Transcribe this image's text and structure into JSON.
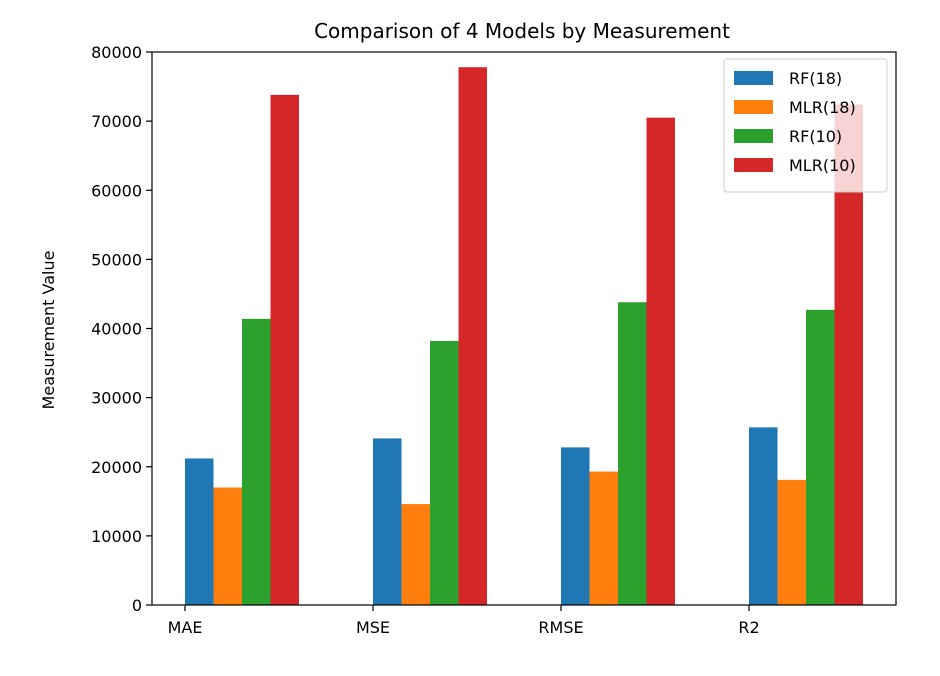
{
  "chart_data": {
    "type": "bar",
    "title": "Comparison of 4 Models by Measurement",
    "xlabel": "",
    "ylabel": "Measurement Value",
    "categories": [
      "MAE",
      "MSE",
      "RMSE",
      "R2"
    ],
    "series": [
      {
        "name": "RF(18)",
        "color": "#1f77b4",
        "values": [
          21200,
          24100,
          22800,
          25700
        ]
      },
      {
        "name": "MLR(18)",
        "color": "#ff7f0e",
        "values": [
          17000,
          14600,
          19300,
          18100
        ]
      },
      {
        "name": "RF(10)",
        "color": "#2ca02c",
        "values": [
          41400,
          38200,
          43800,
          42700
        ]
      },
      {
        "name": "MLR(10)",
        "color": "#d62728",
        "values": [
          73800,
          77800,
          70500,
          72400
        ]
      }
    ],
    "ylim": [
      0,
      80000
    ],
    "yticks": [
      0,
      10000,
      20000,
      30000,
      40000,
      50000,
      60000,
      70000,
      80000
    ],
    "grid": false,
    "legend_position": "top-right"
  }
}
